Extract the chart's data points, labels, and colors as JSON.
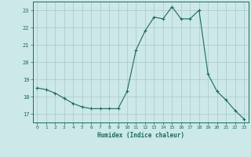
{
  "x": [
    0,
    1,
    2,
    3,
    4,
    5,
    6,
    7,
    8,
    9,
    10,
    11,
    12,
    13,
    14,
    15,
    16,
    17,
    18,
    19,
    20,
    21,
    22,
    23
  ],
  "y": [
    18.5,
    18.4,
    18.2,
    17.9,
    17.6,
    17.4,
    17.3,
    17.3,
    17.3,
    17.3,
    18.3,
    20.7,
    21.8,
    22.6,
    22.5,
    23.2,
    22.5,
    22.5,
    23.0,
    19.3,
    18.3,
    17.8,
    17.2,
    16.7
  ],
  "line_color": "#1a6b5a",
  "marker": "+",
  "marker_size": 3,
  "bg_color": "#cce8e8",
  "grid_color": "#b0cccc",
  "tick_color": "#1a6b5a",
  "label_color": "#1a6b5a",
  "xlabel": "Humidex (Indice chaleur)",
  "ylim": [
    16.5,
    23.5
  ],
  "xlim": [
    -0.5,
    23.5
  ],
  "yticks": [
    17,
    18,
    19,
    20,
    21,
    22,
    23
  ],
  "xticks": [
    0,
    1,
    2,
    3,
    4,
    5,
    6,
    7,
    8,
    9,
    10,
    11,
    12,
    13,
    14,
    15,
    16,
    17,
    18,
    19,
    20,
    21,
    22,
    23
  ]
}
